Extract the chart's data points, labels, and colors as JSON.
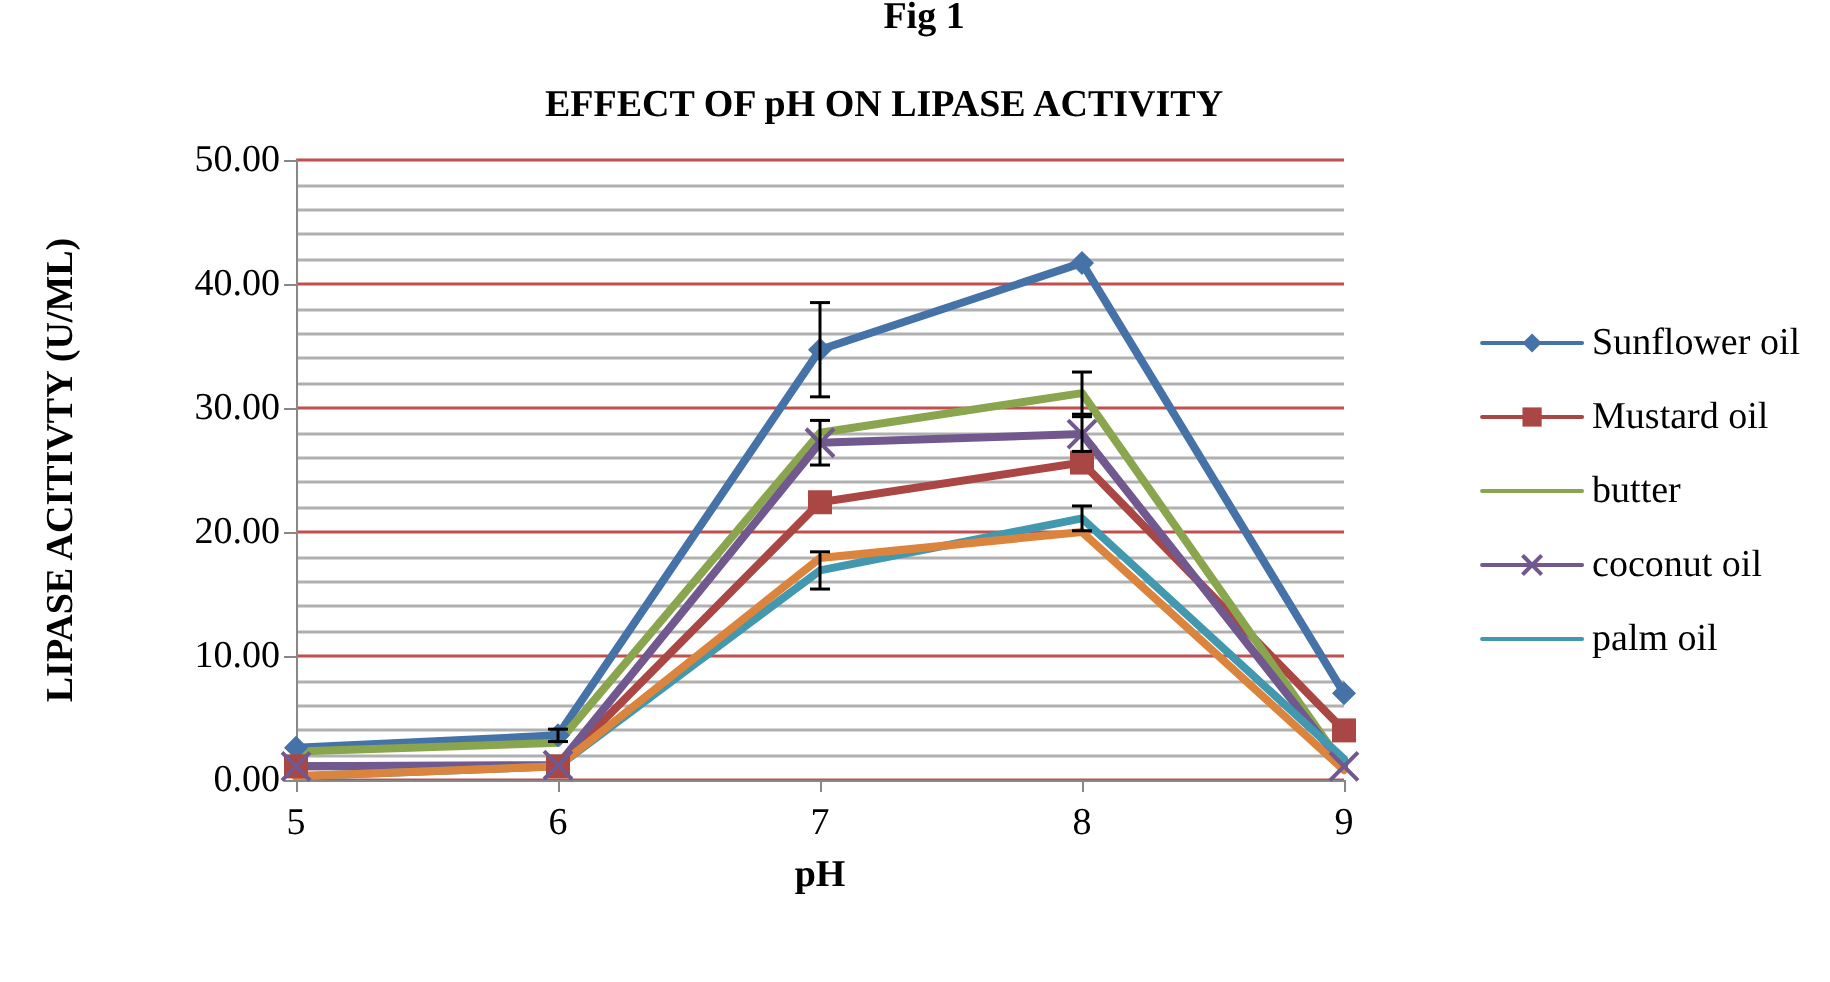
{
  "chart_data": {
    "type": "line",
    "title": "EFFECT OF pH ON LIPASE ACTIVITY",
    "annotations": [
      "Fig 1"
    ],
    "xlabel": "pH",
    "ylabel": "LIPASE ACITIVTY (U/ML)",
    "x": [
      5,
      6,
      7,
      8,
      9
    ],
    "xlim": [
      5,
      9
    ],
    "xticks": [
      5,
      6,
      7,
      8,
      9
    ],
    "ylim": [
      0,
      50
    ],
    "yticks": [
      {
        "value": 0,
        "label": "0.00"
      },
      {
        "value": 10,
        "label": "10.00"
      },
      {
        "value": 20,
        "label": "20.00"
      },
      {
        "value": 30,
        "label": "30.00"
      },
      {
        "value": 40,
        "label": "40.00"
      },
      {
        "value": 50,
        "label": "50.00"
      }
    ],
    "grid": "y",
    "legend": "right",
    "series": [
      {
        "name": "Sunflower oil",
        "color": "#4572a7",
        "marker": "diamond",
        "values": [
          2.6,
          3.6,
          34.7,
          41.7,
          7.0
        ],
        "errors": [
          null,
          0.5,
          3.8,
          null,
          null
        ]
      },
      {
        "name": "Mustard oil",
        "color": "#aa4643",
        "marker": "square",
        "values": [
          1.1,
          1.1,
          22.4,
          25.6,
          4.0
        ]
      },
      {
        "name": "butter",
        "color": "#89a54e",
        "marker": "none",
        "values": [
          2.3,
          3.0,
          28.0,
          31.2,
          1.1
        ],
        "errors": [
          null,
          null,
          null,
          1.7,
          null
        ]
      },
      {
        "name": "coconut oil",
        "color": "#71588f",
        "marker": "cross",
        "values": [
          1.1,
          1.2,
          27.2,
          27.9,
          1.1
        ],
        "errors": [
          null,
          null,
          1.8,
          1.4,
          null
        ]
      },
      {
        "name": "palm oil",
        "color": "#4198af",
        "marker": "none",
        "values": [
          0.3,
          1.1,
          16.9,
          21.1,
          1.7
        ],
        "errors": [
          null,
          null,
          1.5,
          1.0,
          null
        ]
      },
      {
        "color": "#db843d",
        "marker": "none",
        "values": [
          0.3,
          1.1,
          17.9,
          20.0,
          0.8
        ]
      }
    ]
  }
}
